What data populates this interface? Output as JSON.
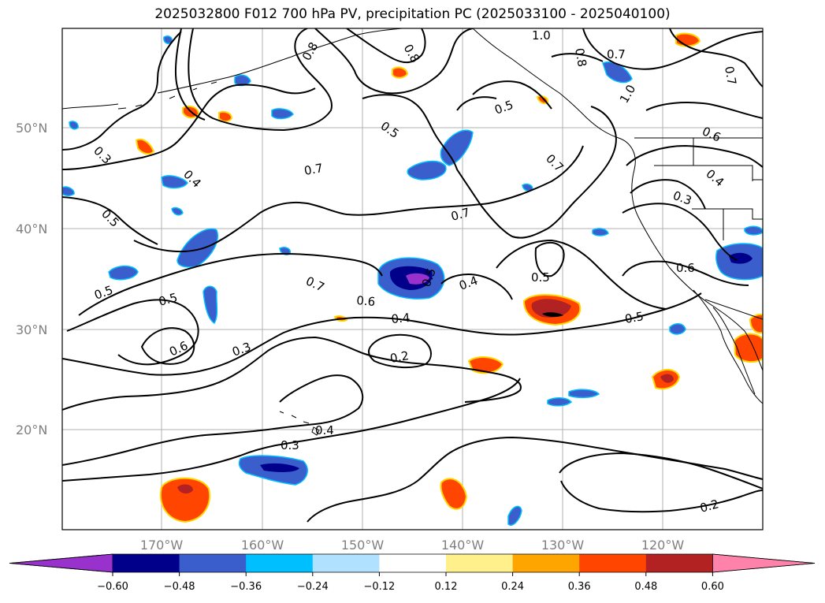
{
  "title": "2025032800 F012 700 hPa PV, precipitation PC (2025033100 - 2025040100)",
  "map": {
    "lat_labels": [
      "50°N",
      "40°N",
      "30°N",
      "20°N"
    ],
    "lon_labels": [
      "170°W",
      "160°W",
      "150°W",
      "140°W",
      "130°W",
      "120°W"
    ],
    "grid_color": "#b0b0b0"
  },
  "contour_labels": [
    "0.8",
    "0.8",
    "1.0",
    "0.8",
    "0.7",
    "0.7",
    "1.0",
    "0.5",
    "0.5",
    "0.6",
    "0.3",
    "0.4",
    "0.5",
    "0.7",
    "0.7",
    "0.4",
    "0.3",
    "0.7",
    "0.5",
    "0.5",
    "0.7",
    "0.6",
    "0.5",
    "0.4",
    "0.4",
    "0.5",
    "0.6",
    "0.3",
    "0.2",
    "0.4",
    "0.3",
    "0.2",
    "0.6",
    "0.5"
  ],
  "colorbar": {
    "ticks": [
      "−0.60",
      "−0.48",
      "−0.36",
      "−0.24",
      "−0.12",
      "0.12",
      "0.24",
      "0.36",
      "0.48",
      "0.60"
    ],
    "colors": [
      "#9932cc",
      "#00008b",
      "#3a5fcd",
      "#00bfff",
      "#b0e2ff",
      "#ffffff",
      "#fff08c",
      "#ffa500",
      "#ff4500",
      "#b22222",
      "#ff82ab"
    ]
  }
}
